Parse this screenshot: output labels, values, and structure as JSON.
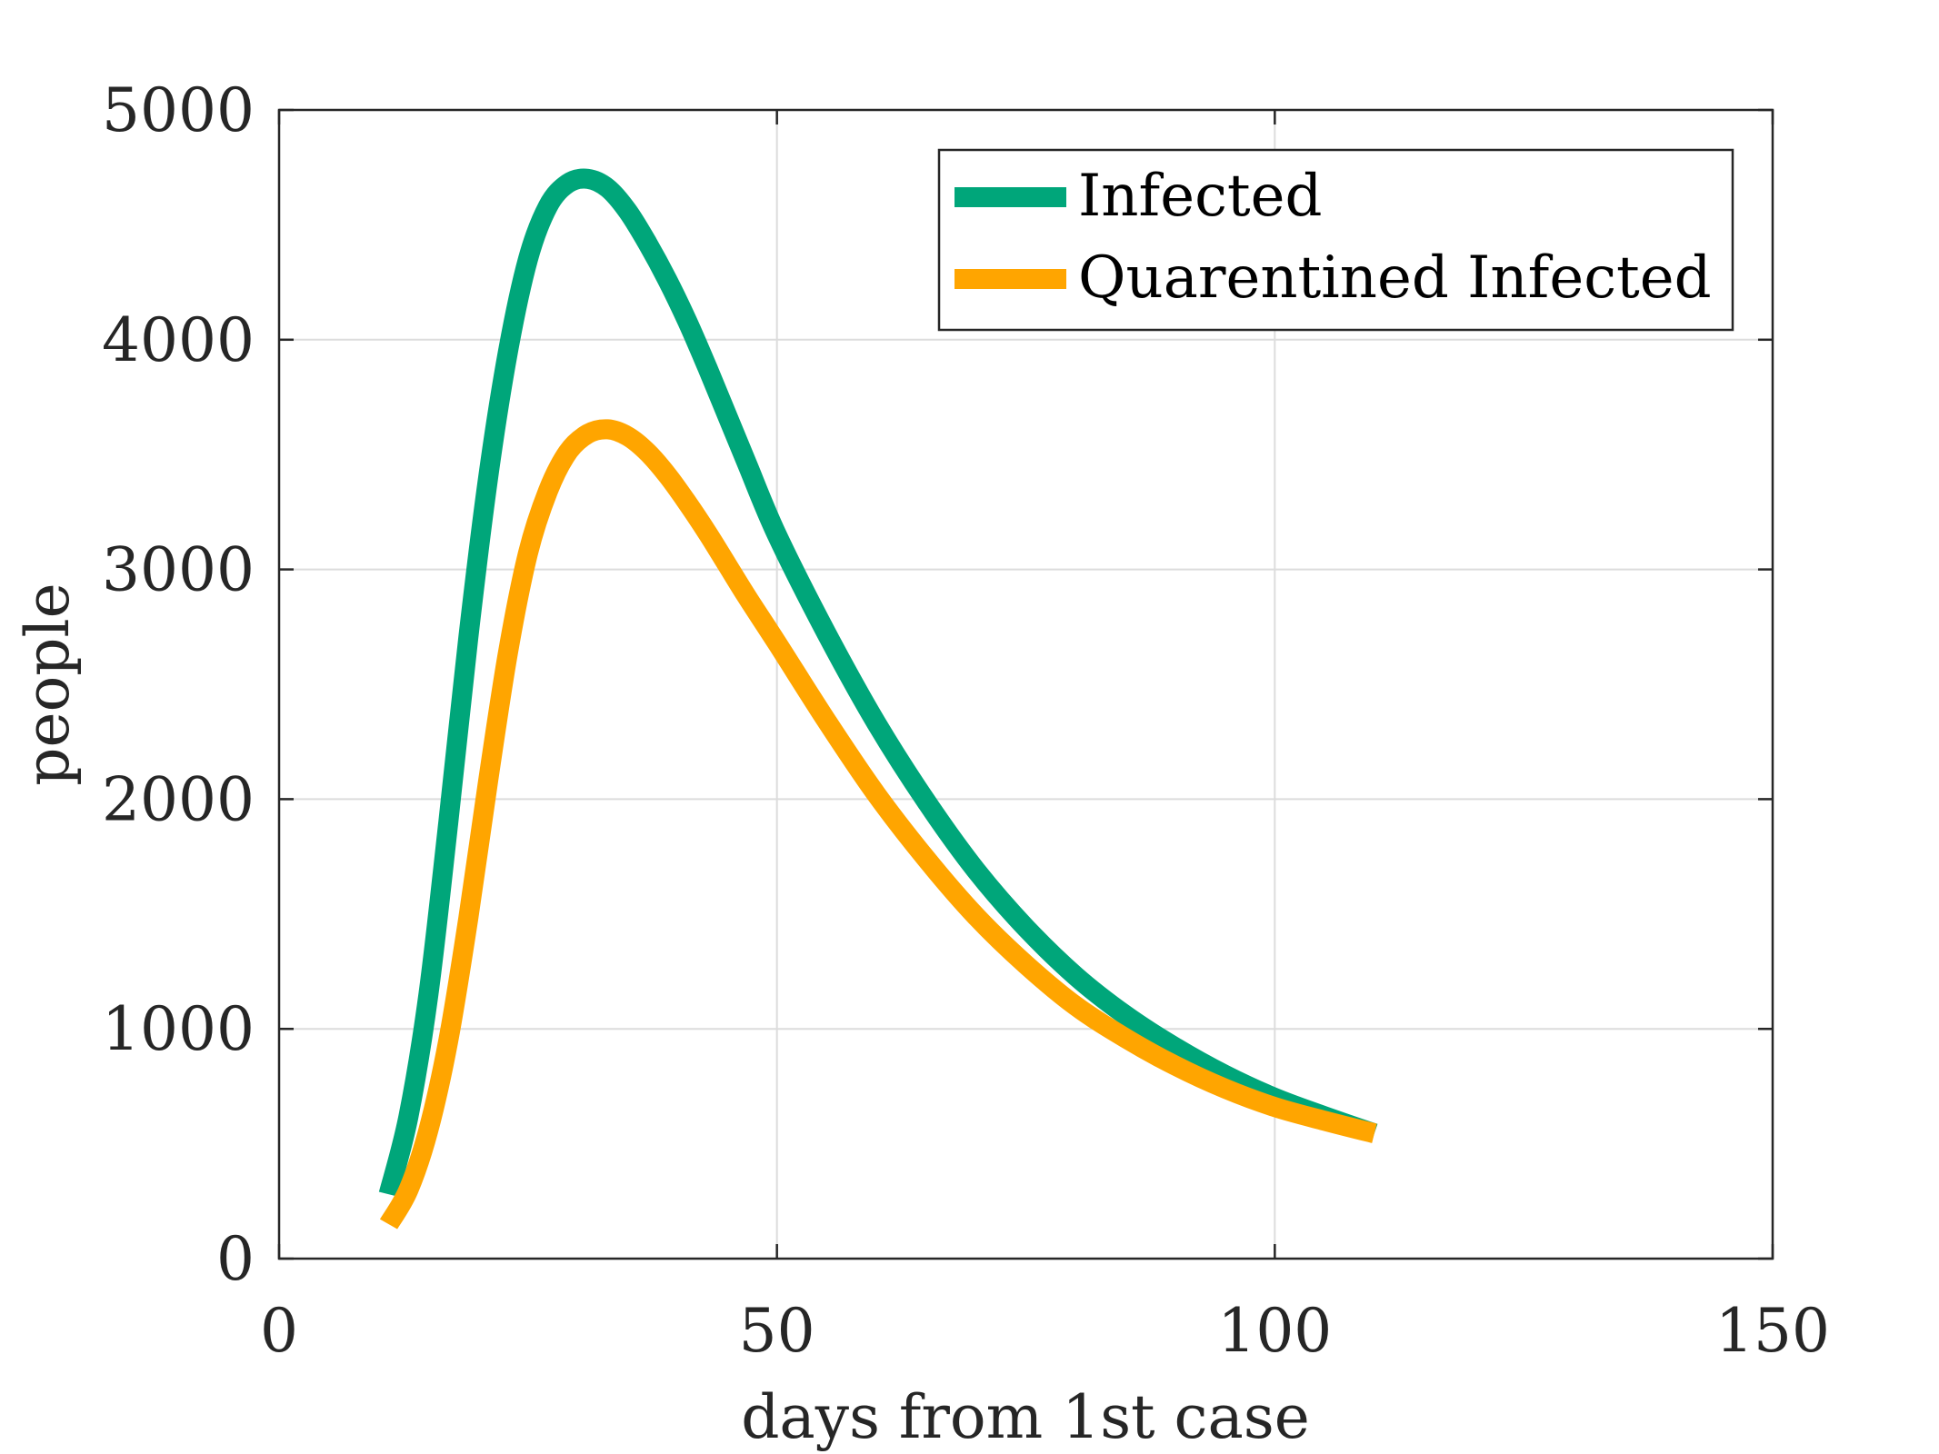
{
  "chart_data": {
    "type": "line",
    "title": "",
    "xlabel": "days from 1st case",
    "ylabel": "people",
    "xlim": [
      0,
      150
    ],
    "ylim": [
      0,
      5000
    ],
    "xticks": [
      "0",
      "50",
      "100",
      "150"
    ],
    "yticks": [
      "0",
      "1000",
      "2000",
      "3000",
      "4000",
      "5000"
    ],
    "grid": true,
    "legend_position": "top-right",
    "series": [
      {
        "name": "Infected",
        "color": "#00a67a",
        "points": [
          [
            11,
            280
          ],
          [
            13,
            620
          ],
          [
            15,
            1150
          ],
          [
            17,
            1900
          ],
          [
            19,
            2700
          ],
          [
            21,
            3400
          ],
          [
            23,
            3950
          ],
          [
            25,
            4350
          ],
          [
            27,
            4580
          ],
          [
            29,
            4680
          ],
          [
            31,
            4700
          ],
          [
            33,
            4660
          ],
          [
            35,
            4560
          ],
          [
            37,
            4420
          ],
          [
            39,
            4260
          ],
          [
            41,
            4080
          ],
          [
            43,
            3880
          ],
          [
            45,
            3670
          ],
          [
            47,
            3460
          ],
          [
            50,
            3150
          ],
          [
            55,
            2720
          ],
          [
            60,
            2330
          ],
          [
            65,
            1990
          ],
          [
            70,
            1690
          ],
          [
            75,
            1440
          ],
          [
            80,
            1230
          ],
          [
            85,
            1060
          ],
          [
            90,
            920
          ],
          [
            95,
            800
          ],
          [
            100,
            700
          ],
          [
            105,
            620
          ],
          [
            110,
            545
          ]
        ]
      },
      {
        "name": "Quarentined Infected",
        "color": "#ffa500",
        "points": [
          [
            11,
            150
          ],
          [
            13,
            300
          ],
          [
            15,
            560
          ],
          [
            17,
            950
          ],
          [
            19,
            1480
          ],
          [
            21,
            2080
          ],
          [
            23,
            2640
          ],
          [
            25,
            3070
          ],
          [
            27,
            3340
          ],
          [
            29,
            3510
          ],
          [
            31,
            3590
          ],
          [
            33,
            3610
          ],
          [
            35,
            3580
          ],
          [
            37,
            3510
          ],
          [
            39,
            3410
          ],
          [
            41,
            3290
          ],
          [
            43,
            3160
          ],
          [
            45,
            3020
          ],
          [
            47,
            2880
          ],
          [
            50,
            2680
          ],
          [
            55,
            2340
          ],
          [
            60,
            2020
          ],
          [
            65,
            1740
          ],
          [
            70,
            1490
          ],
          [
            75,
            1280
          ],
          [
            80,
            1100
          ],
          [
            85,
            960
          ],
          [
            90,
            840
          ],
          [
            95,
            740
          ],
          [
            100,
            660
          ],
          [
            105,
            600
          ],
          [
            110,
            545
          ]
        ]
      }
    ]
  }
}
